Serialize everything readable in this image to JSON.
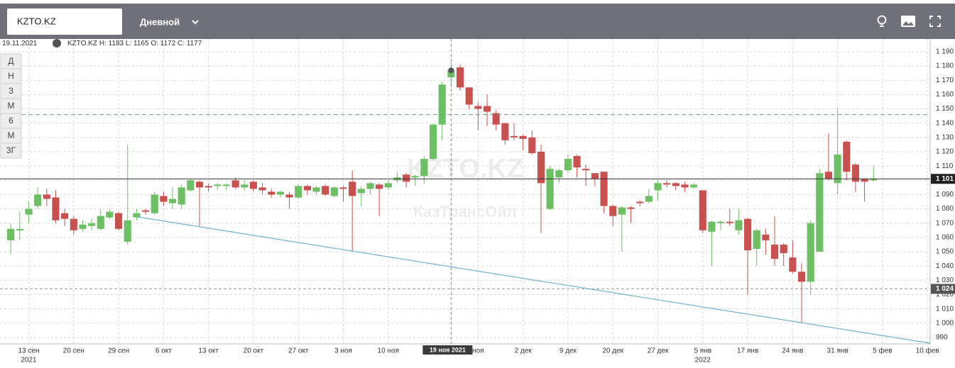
{
  "toolbar": {
    "interval": "Дневной"
  },
  "periods": [
    "Д",
    "Н",
    "3",
    "М",
    "6",
    "М",
    "3Г"
  ],
  "info": {
    "date": "19.11.2021",
    "labels": [
      "H:",
      "L:",
      "O:",
      "C:"
    ]
  },
  "chart_data": {
    "type": "candlestick",
    "symbol": "KZTO.KZ",
    "watermark": "КазТрансОйл",
    "up_color": "#6cbf62",
    "down_color": "#c8504f",
    "categories": [
      null,
      null,
      null,
      null,
      null,
      null,
      null,
      null,
      null,
      null,
      null,
      null,
      null,
      null,
      null,
      null,
      null,
      null,
      null,
      null,
      null,
      null,
      null,
      null,
      null,
      null,
      null,
      null,
      null,
      null,
      null,
      null,
      null,
      null,
      null,
      null,
      null,
      null,
      null,
      null,
      null,
      null,
      null,
      null,
      null,
      null,
      null,
      null,
      null,
      null,
      null,
      null,
      null,
      null,
      null,
      null,
      null,
      null,
      null,
      null,
      null,
      null,
      null,
      null,
      null,
      null,
      null,
      null,
      null,
      null,
      null,
      null,
      null,
      null,
      null,
      null,
      null,
      null,
      null,
      null,
      null,
      null,
      null,
      null,
      null,
      null,
      null,
      null,
      null,
      null,
      null,
      null,
      null,
      null,
      null,
      null,
      null
    ],
    "open": [
      1058,
      1065,
      1076,
      1082,
      1090,
      1088,
      1077,
      1073,
      1066,
      1068,
      1066,
      1074,
      1077,
      1057,
      1074,
      1079,
      1077,
      1089,
      1084,
      1083,
      1093,
      1099,
      1096,
      1096,
      1096,
      1100,
      1095,
      1099,
      1095,
      1092,
      1090,
      1090,
      1088,
      1096,
      1092,
      1096,
      1089,
      1095,
      1099,
      1091,
      1094,
      1097,
      1095,
      1100,
      1104,
      1102,
      1103,
      1115,
      1139,
      1172,
      1179,
      1165,
      1152,
      1152,
      1147,
      1140,
      1131,
      1131,
      1130,
      1120,
      1080,
      1102,
      1107,
      1117,
      1108,
      1105,
      1106,
      1082,
      1076,
      1081,
      1085,
      1085,
      1093,
      1098,
      1098,
      1097,
      1095,
      1093,
      1064,
      1070,
      1071,
      1065,
      1073,
      1052,
      1062,
      1055,
      1055,
      1046,
      1036,
      1029,
      1050,
      1106,
      1098,
      1127,
      1111,
      1101,
      1100
    ],
    "high": [
      1070,
      1078,
      1085,
      1095,
      1094,
      1093,
      1080,
      1075,
      1072,
      1073,
      1080,
      1080,
      1078,
      1125,
      1080,
      1080,
      1092,
      1092,
      1095,
      1097,
      1101,
      1100,
      1098,
      1098,
      1098,
      1102,
      1100,
      1100,
      1098,
      1094,
      1093,
      1092,
      1097,
      1097,
      1096,
      1097,
      1096,
      1096,
      1107,
      1096,
      1099,
      1098,
      1100,
      1106,
      1105,
      1104,
      1117,
      1140,
      1169,
      1183,
      1181,
      1165,
      1155,
      1160,
      1149,
      1140,
      1140,
      1132,
      1135,
      1125,
      1110,
      1108,
      1118,
      1118,
      1111,
      1104,
      1106,
      1083,
      1082,
      1082,
      1086,
      1094,
      1100,
      1100,
      1099,
      1099,
      1098,
      1093,
      1072,
      1072,
      1080,
      1080,
      1074,
      1066,
      1066,
      1075,
      1056,
      1058,
      1042,
      1072,
      1108,
      1133,
      1150,
      1128,
      1112,
      1101,
      1110
    ],
    "low": [
      1048,
      1058,
      1070,
      1080,
      1082,
      1070,
      1068,
      1062,
      1064,
      1065,
      1065,
      1073,
      1065,
      1055,
      1072,
      1076,
      1076,
      1082,
      1080,
      1080,
      1092,
      1068,
      1092,
      1093,
      1093,
      1094,
      1093,
      1092,
      1090,
      1088,
      1088,
      1080,
      1087,
      1090,
      1090,
      1089,
      1088,
      1085,
      1050,
      1082,
      1090,
      1075,
      1093,
      1098,
      1095,
      1096,
      1098,
      1114,
      1128,
      1165,
      1163,
      1150,
      1135,
      1138,
      1135,
      1125,
      1128,
      1121,
      1118,
      1063,
      1079,
      1098,
      1105,
      1102,
      1096,
      1096,
      1077,
      1068,
      1050,
      1070,
      1082,
      1084,
      1086,
      1095,
      1093,
      1092,
      1094,
      1063,
      1040,
      1065,
      1068,
      1062,
      1020,
      1040,
      1048,
      1040,
      1040,
      1035,
      1000,
      1020,
      1050,
      1100,
      1090,
      1100,
      1092,
      1085,
      1099
    ],
    "close": [
      1066,
      1066,
      1080,
      1090,
      1087,
      1072,
      1073,
      1065,
      1069,
      1070,
      1075,
      1078,
      1066,
      1072,
      1077,
      1078,
      1090,
      1085,
      1087,
      1095,
      1100,
      1095,
      1095,
      1097,
      1097,
      1095,
      1097,
      1094,
      1093,
      1090,
      1092,
      1088,
      1096,
      1093,
      1095,
      1090,
      1095,
      1094,
      1089,
      1094,
      1098,
      1094,
      1098,
      1102,
      1099,
      1103,
      1115,
      1139,
      1167,
      1177,
      1165,
      1153,
      1150,
      1148,
      1139,
      1128,
      1130,
      1129,
      1119,
      1098,
      1108,
      1107,
      1115,
      1109,
      1107,
      1101,
      1082,
      1075,
      1081,
      1080,
      1084,
      1089,
      1098,
      1097,
      1096,
      1095,
      1097,
      1065,
      1071,
      1071,
      1070,
      1072,
      1051,
      1065,
      1058,
      1045,
      1049,
      1036,
      1029,
      1070,
      1105,
      1101,
      1118,
      1106,
      1099,
      1099,
      1101
    ],
    "xlim": [
      -1.2,
      102.3
    ],
    "ylim": [
      985.5,
      1198.9
    ],
    "xticks": [
      {
        "value": 2,
        "label": "13 сен"
      },
      {
        "value": 7,
        "label": "20 сен"
      },
      {
        "value": 12,
        "label": "29 сен"
      },
      {
        "value": 17,
        "label": "6 окт"
      },
      {
        "value": 22,
        "label": "13 окт"
      },
      {
        "value": 27,
        "label": "20 окт"
      },
      {
        "value": 32,
        "label": "27 окт"
      },
      {
        "value": 37,
        "label": "3 ноя"
      },
      {
        "value": 42,
        "label": "10 ноя"
      },
      {
        "value": 52,
        "label": "ноя"
      },
      {
        "value": 57,
        "label": "2 дек"
      },
      {
        "value": 62,
        "label": "9 дек"
      },
      {
        "value": 67,
        "label": "20 дек"
      },
      {
        "value": 72,
        "label": "27 дек"
      },
      {
        "value": 77,
        "label": "5 янв"
      },
      {
        "value": 82,
        "label": "17 янв"
      },
      {
        "value": 87,
        "label": "24 янв"
      },
      {
        "value": 92,
        "label": "31 янв"
      },
      {
        "value": 97,
        "label": "5 фев"
      },
      {
        "value": 102,
        "label": "10 фев"
      }
    ],
    "years": [
      {
        "value": 2,
        "label": "2021"
      },
      {
        "value": 77,
        "label": "2022"
      }
    ],
    "yticks": [
      {
        "value": 990,
        "label": "990"
      },
      {
        "value": 1000,
        "label": "1 000"
      },
      {
        "value": 1010,
        "label": "1 010"
      },
      {
        "value": 1020,
        "label": "1 020"
      },
      {
        "value": 1030,
        "label": "1 030"
      },
      {
        "value": 1040,
        "label": "1 040"
      },
      {
        "value": 1050,
        "label": "1 050"
      },
      {
        "value": 1060,
        "label": "1 060"
      },
      {
        "value": 1070,
        "label": "1 070"
      },
      {
        "value": 1080,
        "label": "1 080"
      },
      {
        "value": 1090,
        "label": "1 090"
      },
      {
        "value": 1100,
        "label": "1 100"
      },
      {
        "value": 1110,
        "label": "1 110"
      },
      {
        "value": 1120,
        "label": "1 120"
      },
      {
        "value": 1130,
        "label": "1 130"
      },
      {
        "value": 1140,
        "label": "1 140"
      },
      {
        "value": 1150,
        "label": "1 150"
      },
      {
        "value": 1160,
        "label": "1 160"
      },
      {
        "value": 1170,
        "label": "1 170"
      },
      {
        "value": 1180,
        "label": "1 180"
      },
      {
        "value": 1190,
        "label": "1 190"
      }
    ],
    "grid": true,
    "last_price": {
      "value": 1101,
      "label": "1 101"
    },
    "level": {
      "value": 1024,
      "label": "1 024"
    },
    "resistance": 1146,
    "trendline": {
      "x": [
        14.1,
        102.3
      ],
      "values": [
        1074.4,
        986
      ]
    },
    "crosshair": {
      "candle": 49,
      "label": "19 ноя 2021"
    }
  }
}
